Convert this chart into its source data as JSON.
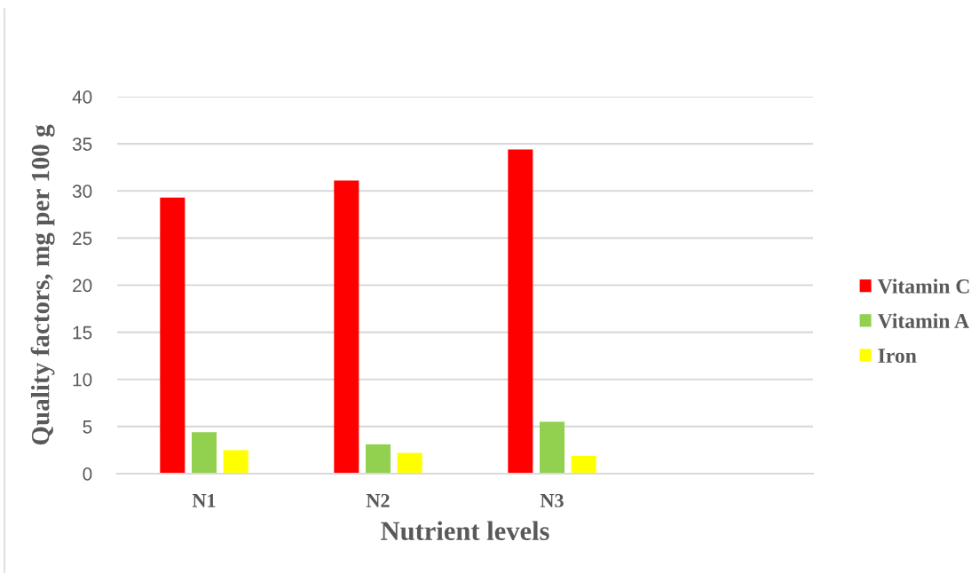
{
  "chart_data": {
    "type": "bar",
    "xlabel": "Nutrient levels",
    "ylabel": "Quality factors, mg per 100 g",
    "categories": [
      "N1",
      "N2",
      "N3",
      null
    ],
    "series": [
      {
        "name": "Vitamin C",
        "color": "#ff0000",
        "values": [
          29.3,
          31.1,
          34.4,
          null
        ]
      },
      {
        "name": "Vitamin A",
        "color": "#92d050",
        "values": [
          4.4,
          3.1,
          5.5,
          null
        ]
      },
      {
        "name": "Iron",
        "color": "#ffff00",
        "values": [
          2.5,
          2.2,
          1.9,
          null
        ]
      }
    ],
    "ylim": [
      0,
      40
    ],
    "yticks": [
      0,
      5,
      10,
      15,
      20,
      25,
      30,
      35,
      40
    ],
    "grid": "y",
    "legend": "right"
  }
}
